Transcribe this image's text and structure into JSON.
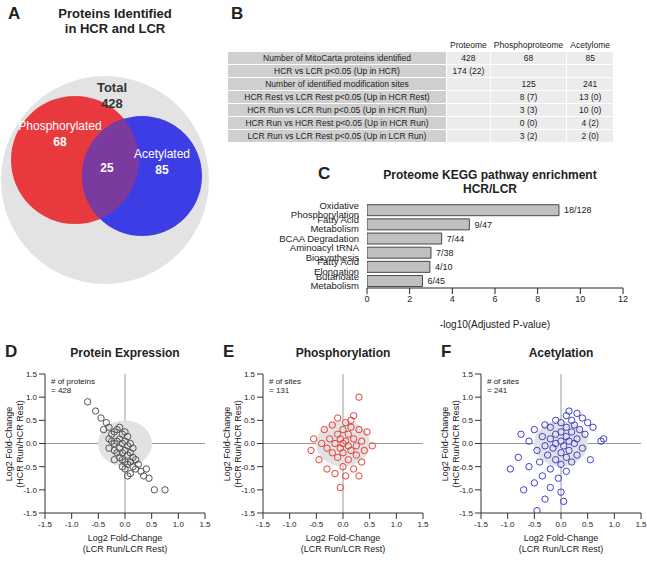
{
  "venn": {
    "panel": "A",
    "title": [
      "Proteins Identified",
      "in HCR and LCR"
    ],
    "total_label": "Total",
    "total": 428,
    "total_color": "#e3e3e3",
    "sets": [
      {
        "name": "Phosphorylated",
        "count": 68,
        "color": "#e8393f"
      },
      {
        "name": "Acetylated",
        "count": 85,
        "color": "#3d3de6"
      }
    ],
    "overlap": 25,
    "overlap_color": "#7b3a9e"
  },
  "table": {
    "panel": "B",
    "header": [
      null,
      "Proteome",
      "Phosphoproteome",
      "Acetylome"
    ],
    "rows": [
      [
        "Number of MitoCarta proteins identified",
        "428",
        "68",
        "85"
      ],
      [
        "HCR vs LCR p<0.05 (Up in HCR)",
        "174 (22)",
        null,
        null
      ],
      [
        "Number of identified modification sites",
        null,
        "125",
        "241"
      ],
      [
        "HCR Rest vs LCR Rest p<0.05 (Up in HCR Rest)",
        null,
        "8 (7)",
        "13 (0)"
      ],
      [
        "HCR Run vs LCR Run p<0.05 (Up in HCR Run)",
        null,
        "3 (3)",
        "10 (0)"
      ],
      [
        "HCR Run vs HCR Rest p<0.05 (Up in HCR Run)",
        null,
        "0 (0)",
        "4 (2)"
      ],
      [
        "LCR Run vs LCR Rest p<0.05 (Up in LCR Run)",
        null,
        "3 (2)",
        "2 (0)"
      ]
    ]
  },
  "chart_data": [
    {
      "panel": "C",
      "type": "bar",
      "orientation": "horizontal",
      "title": [
        "Proteome KEGG pathway enrichment",
        "HCR/LCR"
      ],
      "categories": [
        "Oxidative Phosphorylation",
        "Fatty Acid Metabolism",
        "BCAA Degradation",
        "Aminoacyl tRNA Biosynthesis",
        "Fatty Acid Elongation",
        "Butanoate Metabolism"
      ],
      "values": [
        9.0,
        4.8,
        3.5,
        3.0,
        2.95,
        2.6
      ],
      "bar_labels": [
        "18/128",
        "9/47",
        "7/44",
        "7/38",
        "4/10",
        "6/45"
      ],
      "color": "#c0c0c0",
      "x_label": "-log10(Adjusted P-value)",
      "xlim": [
        0,
        12
      ],
      "xticks": [
        0,
        2,
        4,
        6,
        8,
        10,
        12
      ]
    },
    {
      "panel": "D",
      "type": "scatter",
      "title": "Protein Expression",
      "annotation": [
        "# of proteins",
        "= 428"
      ],
      "x_label": [
        "Log2 Fold-Change",
        "(LCR Run/LCR Rest)"
      ],
      "y_label": [
        "Log2 Fold-Change",
        "(HCR Run/HCR Rest)"
      ],
      "xlim": [
        -1.5,
        1.5
      ],
      "ylim": [
        -1.5,
        1.5
      ],
      "xticks": [
        -1.5,
        {
          "value": -1,
          "label": "-1.0"
        },
        -0.5,
        {
          "value": 0,
          "label": "0.0"
        },
        0.5,
        {
          "value": 1,
          "label": "1.0"
        },
        1.5
      ],
      "yticks": [
        -1.5,
        {
          "value": -1,
          "label": "-1.0"
        },
        -0.5,
        {
          "value": 0,
          "label": "0.0"
        },
        0.5,
        {
          "value": 1,
          "label": "1.0"
        },
        1.5
      ],
      "color": "#555555",
      "marker": "open_circle",
      "x": [
        -0.7,
        -0.55,
        -0.45,
        -0.35,
        -0.4,
        -0.3,
        -0.25,
        -0.2,
        -0.15,
        -0.1,
        -0.05,
        0,
        0.05,
        -0.3,
        -0.25,
        -0.2,
        -0.15,
        -0.1,
        -0.05,
        0,
        0.05,
        0.1,
        0.15,
        -0.3,
        -0.2,
        -0.15,
        -0.1,
        -0.05,
        0,
        0.05,
        0.1,
        0.15,
        0.2,
        -0.1,
        -0.05,
        0,
        0.05,
        0.1,
        0.15,
        0.2,
        0,
        -0.05,
        0.25,
        0.3,
        0.35,
        0.4,
        0.45,
        0.55,
        0.75,
        -0.2,
        0.1,
        0.05
      ],
      "values": [
        0.9,
        0.7,
        0.55,
        0.45,
        0.3,
        0.35,
        0.2,
        0.25,
        0.3,
        0.35,
        0.2,
        0.25,
        0.15,
        0.1,
        0.05,
        0,
        0.05,
        0.1,
        0,
        0.05,
        -0.05,
        0,
        -0.1,
        -0.1,
        -0.15,
        -0.2,
        -0.1,
        -0.2,
        -0.15,
        -0.25,
        -0.2,
        -0.3,
        -0.35,
        -0.3,
        -0.35,
        -0.4,
        -0.45,
        -0.4,
        -0.5,
        -0.55,
        -0.55,
        -0.5,
        -0.45,
        -0.6,
        -0.7,
        -0.55,
        -0.75,
        -1.0,
        -1.0,
        -0.35,
        -0.65,
        -0.7
      ]
    },
    {
      "panel": "E",
      "type": "scatter",
      "title": "Phosphorylation",
      "annotation": [
        "# of sites",
        "= 131"
      ],
      "x_label": [
        "Log2 Fold-Change",
        "(LCR Run/LCR Rest)"
      ],
      "y_label": [
        "Log2 Fold-Change",
        "(HCR Run/HCR Rest)"
      ],
      "xlim": [
        -1.5,
        1.5
      ],
      "ylim": [
        -1.5,
        1.5
      ],
      "xticks": [
        -1.5,
        {
          "value": -1,
          "label": "-1.0"
        },
        -0.5,
        {
          "value": 0,
          "label": "0.0"
        },
        0.5,
        {
          "value": 1,
          "label": "1.0"
        },
        1.5
      ],
      "yticks": [
        -1.5,
        {
          "value": -1,
          "label": "-1.0"
        },
        -0.5,
        {
          "value": 0,
          "label": "0.0"
        },
        0.5,
        {
          "value": 1,
          "label": "1.0"
        },
        1.5
      ],
      "color": "#e5403b",
      "marker": "open_circle",
      "x": [
        0.3,
        0.2,
        -0.1,
        0.05,
        -0.2,
        0.15,
        0.3,
        -0.35,
        0,
        -0.1,
        0.1,
        0.45,
        -0.55,
        -0.25,
        -0.05,
        0.05,
        0.2,
        0.35,
        -0.4,
        -0.15,
        0,
        0.1,
        0.25,
        -0.3,
        -0.05,
        0.15,
        0.4,
        -0.2,
        0,
        0.25,
        -0.45,
        -0.1,
        0.1,
        0.35,
        -0.3,
        0,
        0.2,
        -0.15,
        0.05,
        0.3,
        -0.05,
        0.55,
        -0.6,
        0.15
      ],
      "values": [
        1.0,
        0.6,
        0.55,
        0.45,
        0.4,
        0.35,
        0.3,
        0.3,
        0.3,
        0.2,
        0.2,
        0.25,
        0.1,
        0.1,
        0.1,
        0.05,
        0.1,
        0.05,
        0,
        0,
        0,
        -0.05,
        -0.05,
        -0.1,
        -0.1,
        -0.15,
        -0.15,
        -0.2,
        -0.2,
        -0.25,
        -0.35,
        -0.3,
        -0.35,
        -0.4,
        -0.55,
        -0.5,
        -0.55,
        -0.65,
        -0.7,
        -0.7,
        -0.95,
        -0.05,
        -0.15,
        0.5
      ]
    },
    {
      "panel": "F",
      "type": "scatter",
      "title": "Acetylation",
      "annotation": [
        "# of sites",
        "= 241"
      ],
      "x_label": [
        "Log2 Fold-Change",
        "(LCR Run/LCR Rest)"
      ],
      "y_label": [
        "Log2 Fold-Change",
        "(HCR Run/HCR Rest)"
      ],
      "xlim": [
        -1.5,
        1.5
      ],
      "ylim": [
        -1.5,
        1.5
      ],
      "xticks": [
        -1.5,
        {
          "value": -1,
          "label": "-1.0"
        },
        -0.5,
        {
          "value": 0,
          "label": "0.0"
        },
        0.5,
        {
          "value": 1,
          "label": "1.0"
        },
        1.5
      ],
      "yticks": [
        -1.5,
        {
          "value": -1,
          "label": "-1.0"
        },
        -0.5,
        {
          "value": 0,
          "label": "0.0"
        },
        0.5,
        {
          "value": 1,
          "label": "1.0"
        },
        1.5
      ],
      "color": "#4040d0",
      "marker": "open_circle",
      "x": [
        0.15,
        0.3,
        0.1,
        0.4,
        -0.1,
        0.2,
        0.5,
        0,
        -0.3,
        0.25,
        0.6,
        -0.2,
        0.1,
        0.35,
        -0.5,
        0,
        0.2,
        -0.1,
        0.45,
        -0.35,
        0.1,
        0.3,
        -0.2,
        0,
        0.15,
        -0.6,
        0.75,
        -0.1,
        0.25,
        -0.3,
        0.05,
        0.4,
        -0.15,
        0.15,
        -0.45,
        0,
        -0.25,
        0.3,
        0.1,
        -0.8,
        -0.1,
        -0.4,
        0.2,
        0,
        -0.6,
        -0.2,
        0.1,
        -0.95,
        -0.35,
        -0.05,
        -0.5,
        -0.2,
        0,
        -0.7,
        -0.3,
        -0.45,
        0.05,
        0.8,
        -0.75,
        0.55
      ],
      "values": [
        0.7,
        0.65,
        0.6,
        0.55,
        0.5,
        0.5,
        0.45,
        0.45,
        0.4,
        0.4,
        0.35,
        0.35,
        0.35,
        0.3,
        0.3,
        0.25,
        0.25,
        0.2,
        0.2,
        0.15,
        0.15,
        0.1,
        0.1,
        0.05,
        0.05,
        0.05,
        0.05,
        0,
        0,
        -0.05,
        -0.05,
        -0.1,
        -0.1,
        -0.15,
        -0.15,
        -0.2,
        -0.25,
        -0.25,
        -0.3,
        -0.3,
        -0.35,
        -0.4,
        -0.4,
        -0.45,
        -0.5,
        -0.55,
        -0.6,
        -0.55,
        -0.7,
        -0.75,
        -0.85,
        -0.95,
        -1.05,
        -1.0,
        -1.2,
        -1.45,
        -1.25,
        0.1,
        0.2,
        -0.35
      ]
    }
  ]
}
